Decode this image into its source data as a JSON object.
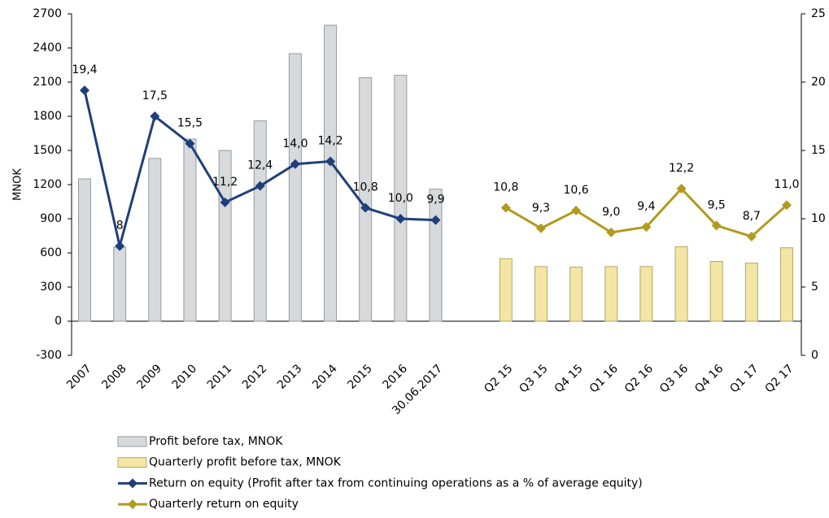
{
  "chart_data": {
    "type": "bar_line",
    "y_label": "MNOK",
    "categories": [
      "2007",
      "2008",
      "2009",
      "2010",
      "2011",
      "2012",
      "2013",
      "2014",
      "2015",
      "2016",
      "30.06.2017",
      null,
      "Q2 15",
      "Q3 15",
      "Q4 15",
      "Q1 16",
      "Q2 16",
      "Q3 16",
      "Q4 16",
      "Q1 17",
      "Q2 17"
    ],
    "ylim": [
      -300,
      2700
    ],
    "yticks": [
      -300,
      0,
      300,
      600,
      900,
      1200,
      1500,
      1800,
      2100,
      2400,
      2700
    ],
    "y2lim": [
      0,
      25
    ],
    "y2ticks": [
      0,
      5,
      10,
      15,
      20,
      25
    ],
    "series": [
      {
        "name": "Profit before tax, MNOK",
        "kind": "bar",
        "color": "#d6dadd",
        "stroke": "#9a9a9a",
        "values": [
          1250,
          650,
          1430,
          1600,
          1500,
          1760,
          2350,
          2600,
          2140,
          2160,
          1160,
          null,
          null,
          null,
          null,
          null,
          null,
          null,
          null,
          null,
          null
        ]
      },
      {
        "name": "Quarterly profit before tax, MNOK",
        "kind": "bar",
        "color": "#f3e5a3",
        "stroke": "#b3a56a",
        "values": [
          null,
          null,
          null,
          null,
          null,
          null,
          null,
          null,
          null,
          null,
          null,
          null,
          550,
          480,
          475,
          480,
          480,
          655,
          525,
          510,
          645
        ]
      },
      {
        "name": "Return on equity (Profit after tax from continuing operations as a % of average equity)",
        "kind": "line",
        "axis": "y2",
        "color": "#1f3f7a",
        "values": [
          19.4,
          8,
          17.5,
          15.5,
          11.2,
          12.4,
          14.0,
          14.2,
          10.8,
          10.0,
          9.9,
          null,
          null,
          null,
          null,
          null,
          null,
          null,
          null,
          null,
          null
        ],
        "value_labels": [
          "19,4",
          "8",
          "17,5",
          "15,5",
          "11,2",
          "12,4",
          "14,0",
          "14,2",
          "10,8",
          "10,0",
          "9,9",
          null,
          null,
          null,
          null,
          null,
          null,
          null,
          null,
          null,
          null
        ]
      },
      {
        "name": "Quarterly return on equity",
        "kind": "line",
        "axis": "y2",
        "color": "#b19a1e",
        "values": [
          null,
          null,
          null,
          null,
          null,
          null,
          null,
          null,
          null,
          null,
          null,
          null,
          10.8,
          9.3,
          10.6,
          9.0,
          9.4,
          12.2,
          9.5,
          8.7,
          11.0
        ],
        "value_labels": [
          null,
          null,
          null,
          null,
          null,
          null,
          null,
          null,
          null,
          null,
          null,
          null,
          "10,8",
          "9,3",
          "10,6",
          "9,0",
          "9,4",
          "12,2",
          "9,5",
          "8,7",
          "11,0"
        ]
      }
    ]
  }
}
